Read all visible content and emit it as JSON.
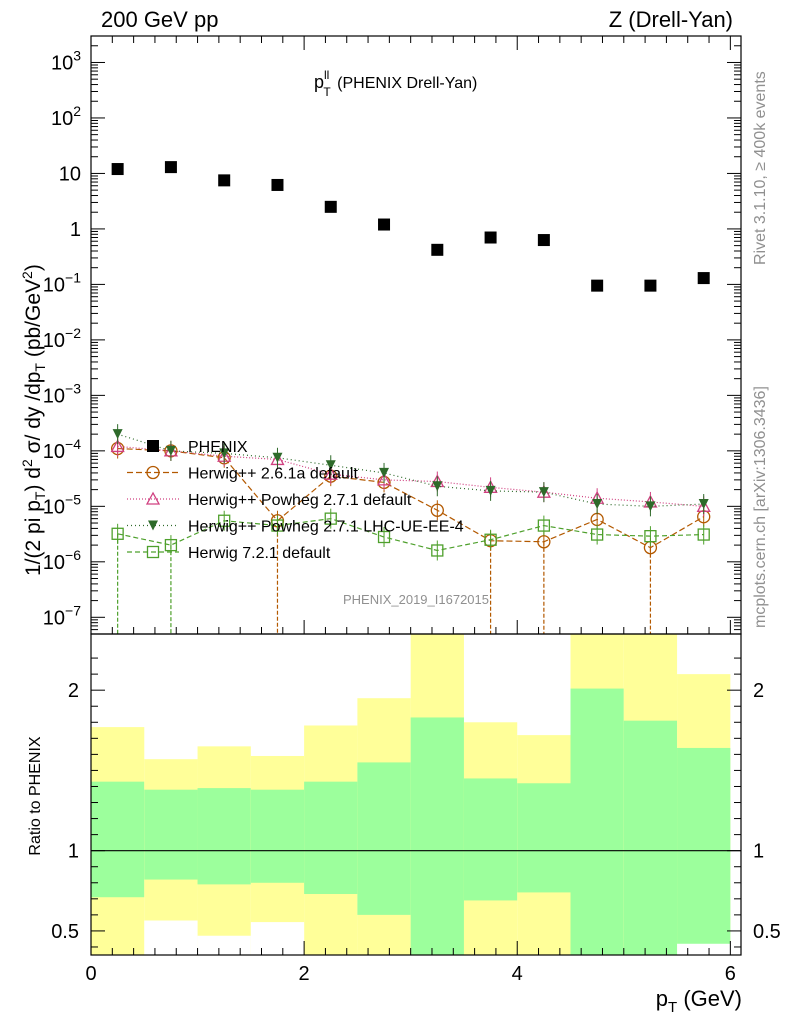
{
  "header": {
    "left": "200 GeV pp",
    "right": "Z (Drell-Yan)"
  },
  "side_labels": {
    "rivet": "Rivet 3.1.10, ≥ 400k events",
    "mcplots": "mcplots.cern.ch [arXiv:1306.3436]"
  },
  "analysis_id": "PHENIX_2019_I1672015",
  "colors": {
    "data": "#000000",
    "herwig_261a": "#b35900",
    "herwig_powheg": "#d04080",
    "herwig_powheg_lhc": "#2e6a2a",
    "herwig_721": "#4ea02c",
    "band_inner": "#9cff9c",
    "band_outer": "#ffff99"
  },
  "chart_data": [
    {
      "type": "scatter",
      "yscale": "log",
      "title_main": "p",
      "title_sup": "ll",
      "title_sub": "T",
      "title_rest": " (PHENIX Drell-Yan)",
      "ylabel": "1/(2 pi p_T) d^2 σ/ dy /dp_T (pb/GeV^2)",
      "xlim": [
        0,
        6.1
      ],
      "ylim": [
        5e-08,
        3000
      ],
      "yticks": [
        {
          "value": 1e-07,
          "base": "10",
          "exp": "−7"
        },
        {
          "value": 1e-06,
          "base": "10",
          "exp": "−6"
        },
        {
          "value": 1e-05,
          "base": "10",
          "exp": "−5"
        },
        {
          "value": 0.0001,
          "base": "10",
          "exp": "−4"
        },
        {
          "value": 0.001,
          "base": "10",
          "exp": "−3"
        },
        {
          "value": 0.01,
          "base": "10",
          "exp": "−2"
        },
        {
          "value": 0.1,
          "base": "10",
          "exp": "−1"
        },
        {
          "value": 1,
          "base": "1",
          "exp": ""
        },
        {
          "value": 10,
          "base": "10",
          "exp": ""
        },
        {
          "value": 100,
          "base": "10",
          "exp": "2"
        },
        {
          "value": 1000,
          "base": "10",
          "exp": "3"
        }
      ],
      "x": [
        0.25,
        0.75,
        1.25,
        1.75,
        2.25,
        2.75,
        3.25,
        3.75,
        4.25,
        4.75,
        5.25,
        5.75
      ],
      "bin_edges": [
        0,
        0.5,
        1,
        1.5,
        2,
        2.5,
        3,
        3.5,
        4,
        4.5,
        5,
        5.5,
        6
      ],
      "series": [
        {
          "name": "PHENIX",
          "color_key": "data",
          "marker": "square",
          "values": [
            12,
            13,
            7.5,
            6.2,
            2.5,
            1.2,
            0.42,
            0.7,
            0.63,
            0.095,
            0.095,
            0.13
          ]
        },
        {
          "name": "Herwig++ 2.6.1a default",
          "color_key": "herwig_261a",
          "marker": "circle",
          "dash": "6,3",
          "values": [
            0.00011,
            0.0001,
            7.5e-05,
            5.5e-06,
            3.5e-05,
            2.7e-05,
            8.5e-06,
            2.4e-06,
            2.3e-06,
            5.8e-06,
            1.8e-06,
            6.5e-06
          ],
          "err_down": [
            0,
            0,
            0,
            1,
            0,
            0,
            0,
            1,
            1,
            0,
            1,
            0
          ]
        },
        {
          "name": "Herwig++ Powheg 2.7.1 default",
          "color_key": "herwig_powheg",
          "marker": "triangle-up",
          "dash": "1,2",
          "values": [
            0.00012,
            0.0001,
            8e-05,
            7e-05,
            3.8e-05,
            3e-05,
            2.8e-05,
            2.2e-05,
            1.8e-05,
            1.4e-05,
            1.2e-05,
            1e-05
          ]
        },
        {
          "name": "Herwig++ Powheg 2.7.1 LHC-UE-EE-4",
          "color_key": "herwig_powheg_lhc",
          "marker": "triangle-down",
          "dash": "1,3",
          "values": [
            0.0002,
            0.0001,
            9e-05,
            7.5e-05,
            5.5e-05,
            4e-05,
            2.3e-05,
            1.9e-05,
            1.8e-05,
            1.1e-05,
            1e-05,
            1.1e-05
          ]
        },
        {
          "name": "Herwig 7.2.1 default",
          "color_key": "herwig_721",
          "marker": "open-square",
          "dash": "5,3",
          "values": [
            3.2e-06,
            2e-06,
            5.5e-06,
            4.5e-06,
            6e-06,
            2.8e-06,
            1.6e-06,
            2.5e-06,
            4.5e-06,
            3.1e-06,
            2.9e-06,
            3.1e-06
          ],
          "err_down": [
            1,
            1,
            0,
            0,
            0,
            0,
            0,
            0,
            0,
            0,
            0,
            0
          ]
        }
      ],
      "legend": [
        "PHENIX",
        "Herwig++ 2.6.1a default",
        "Herwig++ Powheg 2.7.1 default",
        "Herwig++ Powheg 2.7.1 LHC-UE-EE-4",
        "Herwig 7.2.1 default"
      ]
    },
    {
      "type": "area",
      "ylabel": "Ratio to PHENIX",
      "xlabel": "p_T (GeV)",
      "xlabel_main": "p",
      "xlabel_sub": "T",
      "xlabel_unit": " (GeV)",
      "xlim": [
        0,
        6.1
      ],
      "ylim": [
        0.35,
        2.35
      ],
      "yticks": [
        0.5,
        1,
        2
      ],
      "xticks": [
        0,
        2,
        4,
        6
      ],
      "bin_edges": [
        0,
        0.5,
        1,
        1.5,
        2,
        2.5,
        3,
        3.5,
        4,
        4.5,
        5,
        5.5,
        6
      ],
      "inner_band": {
        "upper": [
          1.43,
          1.38,
          1.39,
          1.38,
          1.43,
          1.55,
          1.83,
          1.45,
          1.42,
          2.01,
          1.81,
          1.64
        ],
        "lower": [
          0.71,
          0.82,
          0.79,
          0.8,
          0.73,
          0.6,
          0.35,
          0.69,
          0.74,
          0.35,
          0.35,
          0.35
        ]
      },
      "outer_band": {
        "upper": [
          1.77,
          1.57,
          1.65,
          1.59,
          1.78,
          1.95,
          2.45,
          1.8,
          1.72,
          2.45,
          2.45,
          2.1
        ],
        "lower": [
          0.35,
          0.35,
          0.35,
          0.35,
          0.35,
          0.35,
          0.35,
          0.35,
          0.35,
          0.35,
          0.35,
          0.35
        ],
        "white_gaps": [
          {
            "bin": 1,
            "bottom": 0.35,
            "top": 0.565
          },
          {
            "bin": 2,
            "bottom": 0.35,
            "top": 0.47
          },
          {
            "bin": 3,
            "bottom": 0.35,
            "top": 0.555
          },
          {
            "bin": 11,
            "bottom": 0.35,
            "top": 0.42
          }
        ]
      }
    }
  ]
}
